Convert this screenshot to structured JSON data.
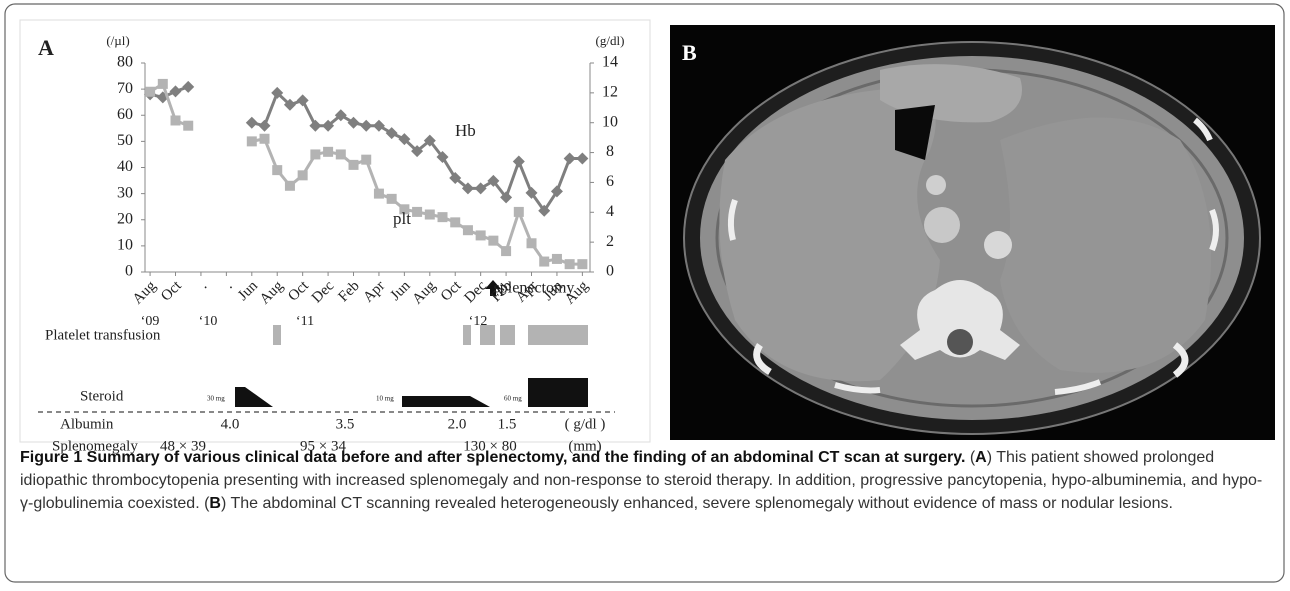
{
  "chart_data": {
    "type": "line",
    "panel_label": "A",
    "ylabel": "(/µl)",
    "y2label": "(g/dl)",
    "x": [
      0,
      0.5,
      1,
      1.5,
      2,
      4,
      4.5,
      5,
      5.5,
      6,
      6.5,
      7,
      7.5,
      8,
      8.5,
      9,
      9.5,
      10,
      10.5,
      11,
      11.5,
      12,
      12.5,
      13,
      13.5,
      14,
      14.5,
      15,
      15.5,
      16,
      16.5,
      17
    ],
    "xlim": [
      -0.2,
      17.3
    ],
    "xticks": [
      {
        "value": 0,
        "label": "Aug"
      },
      {
        "value": 1,
        "label": "Oct"
      },
      {
        "value": 2,
        "label": "."
      },
      {
        "value": 3,
        "label": "."
      },
      {
        "value": 4,
        "label": "Jun"
      },
      {
        "value": 5,
        "label": "Aug"
      },
      {
        "value": 6,
        "label": "Oct"
      },
      {
        "value": 7,
        "label": "Dec"
      },
      {
        "value": 8,
        "label": "Feb"
      },
      {
        "value": 9,
        "label": "Apr"
      },
      {
        "value": 10,
        "label": "Jun"
      },
      {
        "value": 11,
        "label": "Aug"
      },
      {
        "value": 12,
        "label": "Oct"
      },
      {
        "value": 13,
        "label": "Dec"
      },
      {
        "value": 14,
        "label": "Feb"
      },
      {
        "value": 15,
        "label": "Apr"
      },
      {
        "value": 16,
        "label": "Jun"
      },
      {
        "value": 17,
        "label": "Aug"
      }
    ],
    "year_labels": [
      "‘09",
      "‘10",
      "‘11",
      "‘12"
    ],
    "ylim": [
      0,
      80
    ],
    "yticks": [
      0,
      10,
      20,
      30,
      40,
      50,
      60,
      70,
      80
    ],
    "y2lim": [
      0,
      14
    ],
    "y2ticks": [
      0,
      2,
      4,
      6,
      8,
      10,
      12,
      14
    ],
    "series": [
      {
        "name": "Hb",
        "axis": "y2",
        "color": "#7f7f7f",
        "marker": "diamond",
        "values": [
          11.9,
          11.7,
          12.1,
          12.4,
          null,
          10.0,
          9.8,
          12.0,
          11.2,
          11.5,
          9.8,
          9.8,
          10.5,
          10.0,
          9.8,
          9.8,
          9.3,
          8.9,
          8.1,
          8.8,
          7.7,
          6.3,
          5.6,
          5.6,
          6.1,
          5.0,
          7.4,
          5.3,
          4.1,
          5.4,
          7.6,
          7.6
        ]
      },
      {
        "name": "plt",
        "color": "#b3b3b3",
        "marker": "square",
        "values": [
          69,
          72,
          58,
          56,
          null,
          50,
          51,
          39,
          33,
          37,
          45,
          46,
          45,
          41,
          43,
          30,
          28,
          24,
          23,
          22,
          21,
          19,
          16,
          14,
          12,
          8,
          23,
          11,
          4,
          5,
          3,
          3
        ]
      }
    ]
  },
  "timeline": {
    "splenectomy": "splenectomy",
    "platelet_transfusion": "Platelet transfusion",
    "steroid": "Steroid",
    "steroid_doses": [
      "30 mg",
      "10 mg",
      "60 mg"
    ],
    "albumin": {
      "label": "Albumin",
      "values": [
        "4.0",
        "3.5",
        "2.0",
        "1.5"
      ],
      "unit": "( g/dl )"
    },
    "splenomegaly": {
      "label": "Splenomegaly",
      "values": [
        "48 × 39",
        "95 × 34",
        "130 × 80"
      ],
      "unit": "(mm)"
    }
  },
  "panel_b": {
    "label": "B"
  },
  "caption": {
    "title": "Figure 1 Summary of various clinical data before and after splenectomy, and the finding of an abdominal CT scan at surgery.",
    "segments": [
      " (",
      "A",
      ") This patient showed prolonged idiopathic thrombocytopenia presenting with increased splenomegaly and non-response to steroid therapy. In addition, progressive pancytopenia, hypo-albuminemia, and hypo-γ-globulinemia coexisted. (",
      "B",
      ") The abdominal CT scanning revealed heterogeneously enhanced, severe splenomegaly without evidence of mass or nodular lesions."
    ]
  }
}
